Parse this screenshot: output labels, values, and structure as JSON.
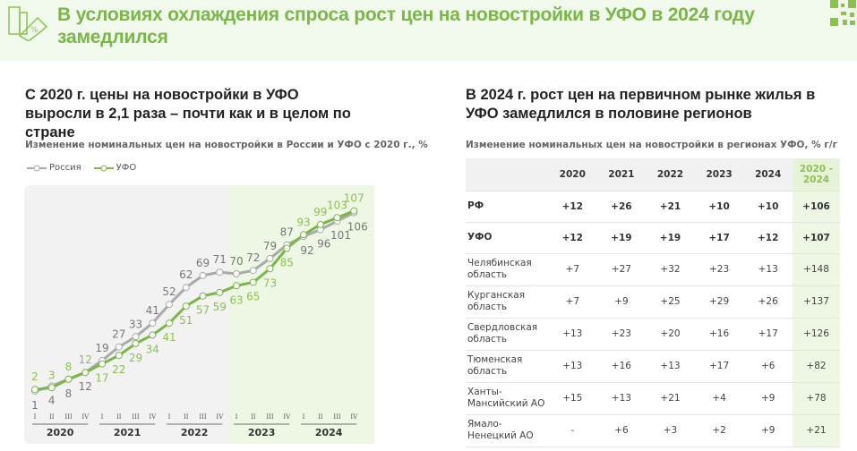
{
  "header": {
    "title": "В условиях охлаждения спроса рост цен на новостройки в УФО в 2024 году замедлился",
    "icon": "building-percent-icon",
    "qr": "qr-code-icon"
  },
  "left": {
    "subtitle": "С 2020 г. цены на новостройки в УФО выросли в 2,1 раза – почти как и в целом по стране",
    "caption": "Изменение номинальных цен на новостройки в России и УФО с 2020 г., %"
  },
  "chart_data": {
    "type": "line",
    "title": "Изменение номинальных цен на новостройки в России и УФО с 2020 г., %",
    "quarters": [
      "I",
      "II",
      "III",
      "IV"
    ],
    "years": [
      "2020",
      "2021",
      "2022",
      "2023",
      "2024"
    ],
    "series": [
      {
        "name": "Россия",
        "color": "#aaaaaa",
        "values": [
          1,
          4,
          8,
          12,
          19,
          27,
          33,
          41,
          52,
          62,
          69,
          71,
          70,
          72,
          79,
          87,
          92,
          96,
          101,
          106
        ]
      },
      {
        "name": "УФО",
        "color": "#7ab648",
        "values": [
          2,
          3,
          8,
          12,
          17,
          22,
          29,
          34,
          41,
          51,
          57,
          59,
          63,
          65,
          73,
          85,
          93,
          99,
          103,
          107
        ]
      }
    ],
    "highlight_from": "2023",
    "grid": false,
    "legend": "top-left"
  },
  "right": {
    "subtitle": "В 2024 г. рост цен на первичном рынке жилья в УФО замедлился в половине регионов",
    "caption": "Изменение номинальных цен на новостройки в регионах УФО, % г/г",
    "columns": [
      "",
      "2020",
      "2021",
      "2022",
      "2023",
      "2024",
      "2020 - 2024"
    ],
    "rows": [
      {
        "name": "РФ",
        "bold": true,
        "values": [
          "+12",
          "+26",
          "+21",
          "+10",
          "+10",
          "+106"
        ]
      },
      {
        "name": "УФО",
        "bold": true,
        "values": [
          "+12",
          "+19",
          "+19",
          "+17",
          "+12",
          "+107"
        ]
      },
      {
        "name": "Челябинская область",
        "values": [
          "+7",
          "+27",
          "+32",
          "+23",
          "+13",
          "+148"
        ]
      },
      {
        "name": "Курганская область",
        "values": [
          "+7",
          "+9",
          "+25",
          "+29",
          "+26",
          "+137"
        ]
      },
      {
        "name": "Свердловская область",
        "values": [
          "+13",
          "+23",
          "+20",
          "+16",
          "+17",
          "+126"
        ]
      },
      {
        "name": "Тюменская область",
        "values": [
          "+13",
          "+16",
          "+13",
          "+17",
          "+6",
          "+82"
        ]
      },
      {
        "name": "Ханты-Мансийский АО",
        "values": [
          "+15",
          "+13",
          "+21",
          "+4",
          "+9",
          "+78"
        ]
      },
      {
        "name": "Ямало-Ненецкий АО",
        "values": [
          "-",
          "+6",
          "+3",
          "+2",
          "+9",
          "+21"
        ]
      }
    ]
  }
}
